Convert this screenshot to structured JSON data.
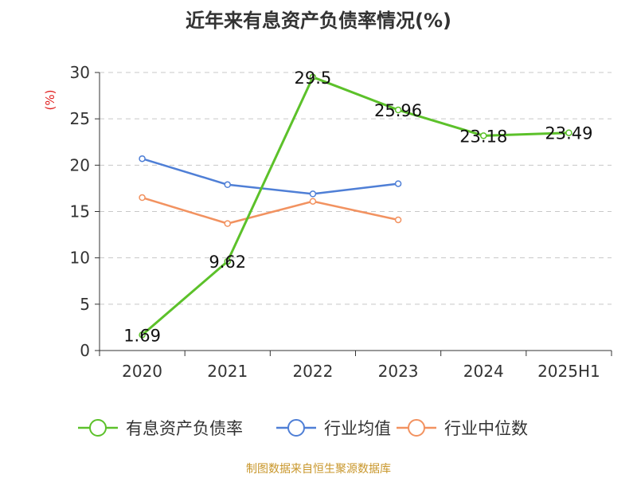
{
  "title": "近年来有息资产负债率情况(%)",
  "source": "制图数据来自恒生聚源数据库",
  "chart_data": {
    "type": "line",
    "categories": [
      "2020",
      "2021",
      "2022",
      "2023",
      "2024",
      "2025H1"
    ],
    "ylabel": "(%)",
    "ylim": [
      0,
      30
    ],
    "yticks": [
      0,
      5,
      10,
      15,
      20,
      25,
      30
    ],
    "grid": true,
    "legend_position": "bottom",
    "series": [
      {
        "name": "有息资产负债率",
        "color": "#5cc12a",
        "values": [
          1.69,
          9.62,
          29.5,
          25.96,
          23.18,
          23.49
        ],
        "data_labels": [
          "1.69",
          "9.62",
          "29.5",
          "25.96",
          "23.18",
          "23.49"
        ]
      },
      {
        "name": "行业均值",
        "color": "#4f7fd6",
        "values": [
          20.7,
          17.9,
          16.9,
          18.0,
          null,
          null
        ]
      },
      {
        "name": "行业中位数",
        "color": "#f29260",
        "values": [
          16.5,
          13.7,
          16.1,
          14.1,
          null,
          null
        ]
      }
    ]
  }
}
